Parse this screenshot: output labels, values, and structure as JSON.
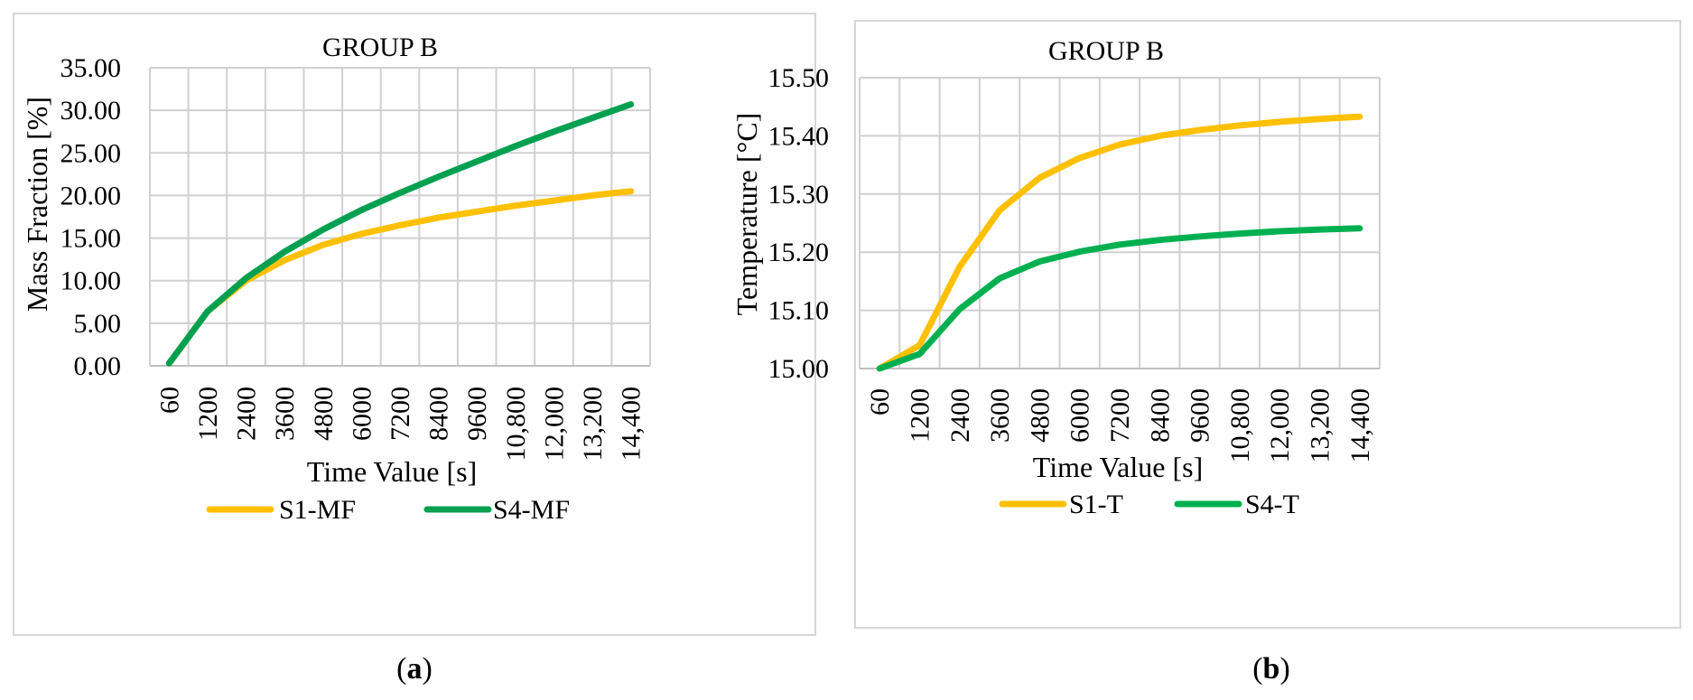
{
  "figure": {
    "caption_a": {
      "open": "(",
      "letter": "a",
      "close": ")"
    },
    "caption_b": {
      "open": "(",
      "letter": "b",
      "close": ")"
    }
  },
  "chart_data": [
    {
      "id": "a",
      "type": "line",
      "title": "GROUP B",
      "xlabel": "Time Value [s]",
      "ylabel": "Mass Fraction [%]",
      "categories": [
        "60",
        "1200",
        "2400",
        "3600",
        "4800",
        "6000",
        "7200",
        "8400",
        "9600",
        "10,800",
        "12,000",
        "13,200",
        "14,400"
      ],
      "ylim": [
        0,
        35
      ],
      "yticks": [
        "0.00",
        "5.00",
        "10.00",
        "15.00",
        "20.00",
        "25.00",
        "30.00",
        "35.00"
      ],
      "grid": true,
      "legend": "bottom",
      "series": [
        {
          "name": "S1-MF",
          "color": "#FFC000",
          "values": [
            0.3,
            6.4,
            10.0,
            12.4,
            14.2,
            15.5,
            16.5,
            17.4,
            18.1,
            18.8,
            19.4,
            20.0,
            20.5
          ]
        },
        {
          "name": "S4-MF",
          "color": "#00A050",
          "values": [
            0.3,
            6.4,
            10.3,
            13.4,
            16.0,
            18.3,
            20.3,
            22.2,
            24.0,
            25.8,
            27.5,
            29.1,
            30.7
          ]
        }
      ]
    },
    {
      "id": "b",
      "type": "line",
      "title": "GROUP B",
      "xlabel": "Time Value [s]",
      "ylabel": "Temperature [°C]",
      "categories": [
        "60",
        "1200",
        "2400",
        "3600",
        "4800",
        "6000",
        "7200",
        "8400",
        "9600",
        "10,800",
        "12,000",
        "13,200",
        "14,400"
      ],
      "ylim": [
        15.0,
        15.5
      ],
      "yticks": [
        "15.00",
        "15.10",
        "15.20",
        "15.30",
        "15.40",
        "15.50"
      ],
      "grid": true,
      "legend": "bottom",
      "series": [
        {
          "name": "S1-T",
          "color": "#FFC000",
          "values": [
            15.0,
            15.04,
            15.175,
            15.272,
            15.328,
            15.362,
            15.385,
            15.4,
            15.41,
            15.418,
            15.424,
            15.429,
            15.433
          ]
        },
        {
          "name": "S4-T",
          "color": "#00B050",
          "values": [
            15.0,
            15.025,
            15.102,
            15.155,
            15.184,
            15.201,
            15.213,
            15.221,
            15.227,
            15.232,
            15.236,
            15.239,
            15.241
          ]
        }
      ]
    }
  ]
}
